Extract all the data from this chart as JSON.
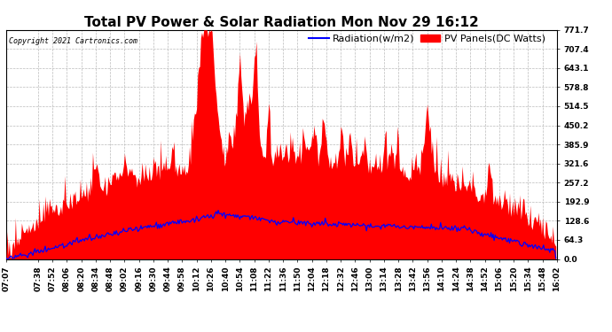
{
  "title": "Total PV Power & Solar Radiation Mon Nov 29 16:12",
  "copyright": "Copyright 2021 Cartronics.com",
  "legend_radiation": "Radiation(w/m2)",
  "legend_pv": "PV Panels(DC Watts)",
  "ylim": [
    0.0,
    771.7
  ],
  "yticks": [
    0.0,
    64.3,
    128.6,
    192.9,
    257.2,
    321.6,
    385.9,
    450.2,
    514.5,
    578.8,
    643.1,
    707.4,
    771.7
  ],
  "bg_color": "#ffffff",
  "grid_color": "#bbbbbb",
  "pv_color": "#ff0000",
  "radiation_color": "#0000ff",
  "title_fontsize": 11,
  "copyright_fontsize": 6,
  "tick_fontsize": 6.5,
  "legend_fontsize": 8,
  "xtick_labels": [
    "07:07",
    "07:38",
    "07:52",
    "08:06",
    "08:20",
    "08:34",
    "08:48",
    "09:02",
    "09:16",
    "09:30",
    "09:44",
    "09:58",
    "10:12",
    "10:26",
    "10:40",
    "10:54",
    "11:08",
    "11:22",
    "11:36",
    "11:50",
    "12:04",
    "12:18",
    "12:32",
    "12:46",
    "13:00",
    "13:14",
    "13:28",
    "13:42",
    "13:56",
    "14:10",
    "14:24",
    "14:38",
    "14:52",
    "15:06",
    "15:20",
    "15:34",
    "15:48",
    "16:02"
  ]
}
